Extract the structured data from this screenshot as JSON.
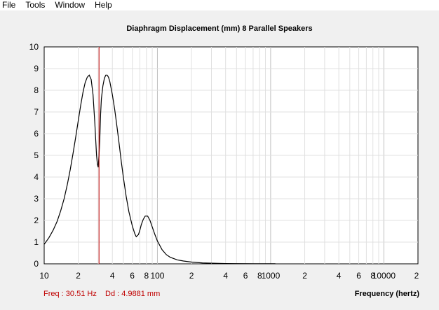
{
  "menu": {
    "items": [
      "File",
      "Tools",
      "Window",
      "Help"
    ]
  },
  "status": {
    "freq": "Freq : 30.51 Hz",
    "dd": "Dd : 4.9881 mm"
  },
  "colors": {
    "background": "#f0f0f0",
    "plot_background": "#ffffff",
    "curve": "#000000",
    "cursor": "#c00000",
    "grid": "#d9d9d9",
    "status_text": "#c00000"
  },
  "chart_data": {
    "type": "line",
    "title": "Diaphragm Displacement (mm)    8 Parallel Speakers",
    "xlabel": "Frequency (hertz)",
    "ylabel": "",
    "x_scale": "log",
    "xlim": [
      10,
      20000
    ],
    "ylim": [
      0,
      10
    ],
    "yticks": [
      0,
      1,
      2,
      3,
      4,
      5,
      6,
      7,
      8,
      9,
      10
    ],
    "xtick_labels": [
      {
        "x": 10,
        "label": "10"
      },
      {
        "x": 20,
        "label": "2"
      },
      {
        "x": 40,
        "label": "4"
      },
      {
        "x": 60,
        "label": "6"
      },
      {
        "x": 80,
        "label": "8"
      },
      {
        "x": 100,
        "label": "100"
      },
      {
        "x": 200,
        "label": "2"
      },
      {
        "x": 400,
        "label": "4"
      },
      {
        "x": 600,
        "label": "6"
      },
      {
        "x": 800,
        "label": "8"
      },
      {
        "x": 1000,
        "label": "1000"
      },
      {
        "x": 2000,
        "label": "2"
      },
      {
        "x": 4000,
        "label": "4"
      },
      {
        "x": 6000,
        "label": "6"
      },
      {
        "x": 8000,
        "label": "8"
      },
      {
        "x": 10000,
        "label": "10000"
      },
      {
        "x": 20000,
        "label": "2"
      }
    ],
    "grid": true,
    "cursor_x": 30.51,
    "series": [
      {
        "x": [
          10,
          11,
          12,
          13,
          14,
          15,
          16,
          17,
          18,
          19,
          20,
          21,
          22,
          23,
          24,
          25,
          26,
          27,
          28,
          29,
          29.5,
          30,
          30.5,
          31,
          31.5,
          32,
          33,
          34,
          35,
          36,
          37,
          38,
          40,
          42,
          44,
          46,
          48,
          50,
          53,
          56,
          60,
          63,
          65,
          68,
          70,
          72,
          75,
          78,
          82,
          86,
          90,
          95,
          100,
          110,
          120,
          130,
          150,
          170,
          200,
          250,
          300,
          400,
          500,
          700,
          1000,
          1100
        ],
        "y": [
          0.9,
          1.2,
          1.55,
          1.95,
          2.45,
          3.0,
          3.65,
          4.35,
          5.1,
          5.85,
          6.6,
          7.3,
          7.9,
          8.35,
          8.6,
          8.7,
          8.5,
          7.8,
          6.5,
          5.0,
          4.6,
          4.45,
          4.9881,
          5.8,
          6.9,
          7.6,
          8.2,
          8.55,
          8.7,
          8.7,
          8.6,
          8.4,
          7.8,
          7.1,
          6.3,
          5.5,
          4.7,
          4.0,
          3.1,
          2.4,
          1.75,
          1.4,
          1.25,
          1.35,
          1.55,
          1.8,
          2.05,
          2.2,
          2.2,
          2.0,
          1.7,
          1.35,
          1.05,
          0.65,
          0.42,
          0.3,
          0.18,
          0.13,
          0.08,
          0.04,
          0.03,
          0.015,
          0.01,
          0.005,
          0.003,
          0.003
        ]
      }
    ]
  }
}
